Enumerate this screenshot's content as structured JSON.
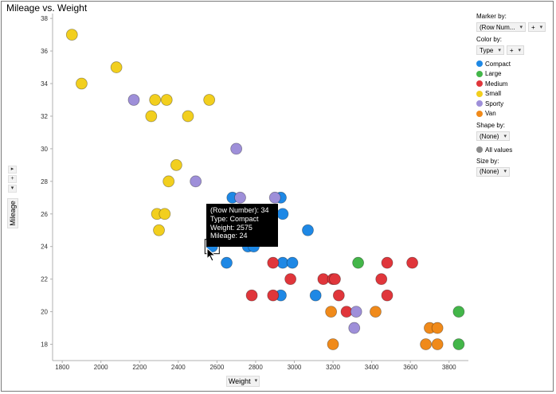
{
  "title": "Mileage vs. Weight",
  "x_axis_control": {
    "label": "Weight",
    "caret": "▾"
  },
  "y_axis_control": {
    "label": "Mileage",
    "buttons": [
      "▸",
      "+",
      "▾"
    ]
  },
  "legend": {
    "marker_by": {
      "title": "Marker by:",
      "value": "(Row Num...",
      "plus": "+",
      "caret": "▾"
    },
    "color_by": {
      "title": "Color by:",
      "value": "Type",
      "plus": "+",
      "caret": "▾"
    },
    "color_items": [
      {
        "label": "Compact",
        "color": "#1e88e5"
      },
      {
        "label": "Large",
        "color": "#43b649"
      },
      {
        "label": "Medium",
        "color": "#e0363b"
      },
      {
        "label": "Small",
        "color": "#f2cf1e"
      },
      {
        "label": "Sporty",
        "color": "#9e8fd9"
      },
      {
        "label": "Van",
        "color": "#f08a1a"
      }
    ],
    "shape_by": {
      "title": "Shape by:",
      "value": "(None)",
      "caret": "▾",
      "item": "All values",
      "item_color": "#8a8a8a"
    },
    "size_by": {
      "title": "Size by:",
      "value": "(None)",
      "caret": "▾"
    }
  },
  "tooltip": {
    "line1": "(Row Number): 34",
    "line2": "Type: Compact",
    "line3": "Weight: 2575",
    "line4": "Mileage: 24"
  },
  "chart_data": {
    "type": "scatter",
    "title": "Mileage vs. Weight",
    "xlabel": "Weight",
    "ylabel": "Mileage",
    "xlim": [
      1750,
      3900
    ],
    "ylim": [
      17,
      38.3
    ],
    "xticks": [
      1800,
      2000,
      2200,
      2400,
      2600,
      2800,
      3000,
      3200,
      3400,
      3600,
      3800
    ],
    "yticks": [
      18,
      20,
      22,
      24,
      26,
      28,
      30,
      32,
      34,
      36,
      38
    ],
    "grid": false,
    "legend_position": "right",
    "highlighted_point": {
      "type": "Compact",
      "x": 2575,
      "y": 24
    },
    "series": [
      {
        "name": "Compact",
        "color": "#1e88e5",
        "points": [
          [
            2575,
            24
          ],
          [
            2650,
            23
          ],
          [
            2680,
            27
          ],
          [
            2760,
            24
          ],
          [
            2790,
            24
          ],
          [
            2930,
            27
          ],
          [
            2940,
            26
          ],
          [
            2940,
            23
          ],
          [
            2930,
            21
          ],
          [
            2990,
            23
          ],
          [
            3070,
            25
          ],
          [
            3110,
            21
          ]
        ]
      },
      {
        "name": "Large",
        "color": "#43b649",
        "points": [
          [
            3330,
            23
          ],
          [
            3850,
            20
          ],
          [
            3850,
            18
          ]
        ]
      },
      {
        "name": "Medium",
        "color": "#e0363b",
        "points": [
          [
            2780,
            21
          ],
          [
            2890,
            23
          ],
          [
            2890,
            21
          ],
          [
            2980,
            22
          ],
          [
            3150,
            22
          ],
          [
            3200,
            22
          ],
          [
            3210,
            22
          ],
          [
            3230,
            21
          ],
          [
            3270,
            20
          ],
          [
            3450,
            22
          ],
          [
            3480,
            23
          ],
          [
            3480,
            21
          ],
          [
            3610,
            23
          ]
        ]
      },
      {
        "name": "Small",
        "color": "#f2cf1e",
        "points": [
          [
            1850,
            37
          ],
          [
            1900,
            34
          ],
          [
            2080,
            35
          ],
          [
            2260,
            32
          ],
          [
            2280,
            33
          ],
          [
            2290,
            26
          ],
          [
            2300,
            25
          ],
          [
            2330,
            26
          ],
          [
            2340,
            33
          ],
          [
            2350,
            28
          ],
          [
            2390,
            29
          ],
          [
            2450,
            32
          ],
          [
            2560,
            33
          ]
        ]
      },
      {
        "name": "Sporty",
        "color": "#9e8fd9",
        "points": [
          [
            2170,
            33
          ],
          [
            2490,
            28
          ],
          [
            2700,
            30
          ],
          [
            2720,
            27
          ],
          [
            2900,
            27
          ],
          [
            3320,
            20
          ],
          [
            3310,
            19
          ]
        ]
      },
      {
        "name": "Van",
        "color": "#f08a1a",
        "points": [
          [
            3190,
            20
          ],
          [
            3200,
            18
          ],
          [
            3420,
            20
          ],
          [
            3680,
            18
          ],
          [
            3700,
            19
          ],
          [
            3740,
            19
          ],
          [
            3740,
            18
          ]
        ]
      }
    ]
  }
}
